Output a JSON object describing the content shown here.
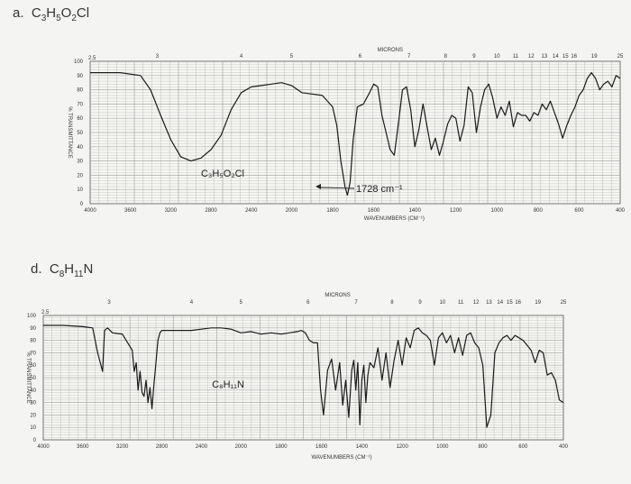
{
  "problems": [
    {
      "letter": "a.",
      "formula_parts": [
        [
          "C",
          ""
        ],
        [
          "H",
          "5"
        ],
        [
          "O",
          "2"
        ],
        [
          "Cl",
          ""
        ]
      ],
      "formula_prefix": "3"
    },
    {
      "letter": "d.",
      "formula_parts": [
        [
          "C",
          ""
        ],
        [
          "H",
          "11"
        ],
        [
          "N",
          ""
        ]
      ],
      "formula_prefix": "8"
    }
  ],
  "chart_data": [
    {
      "type": "line",
      "ylabel": "% TRANSMITTANCE",
      "xlabel": "WAVENUMBERS (CM⁻¹)",
      "top_label": "MICRONS",
      "compound_label": "C₃H₅O₂Cl",
      "annotation": "1728 cm⁻¹",
      "y_ticks": [
        "100",
        "90",
        "80",
        "70",
        "60",
        "50",
        "40",
        "30",
        "20",
        "10",
        "0"
      ],
      "y_top_extra": "2.5",
      "x_ticks": [
        "4000",
        "3600",
        "3200",
        "2800",
        "2400",
        "2000",
        "1800",
        "1600",
        "1400",
        "1200",
        "1000",
        "800",
        "600",
        "400"
      ],
      "micron_ticks": [
        "3",
        "4",
        "5",
        "6",
        "7",
        "8",
        "9",
        "10",
        "11",
        "12",
        "13",
        "14",
        "15",
        "16",
        "19",
        "25"
      ],
      "xlim": [
        4000,
        400
      ],
      "ylim": [
        0,
        100
      ],
      "x": [
        4000,
        3700,
        3500,
        3400,
        3300,
        3200,
        3100,
        3000,
        2900,
        2800,
        2700,
        2600,
        2500,
        2400,
        2300,
        2200,
        2100,
        2000,
        1950,
        1900,
        1850,
        1800,
        1780,
        1760,
        1740,
        1728,
        1715,
        1700,
        1680,
        1650,
        1620,
        1600,
        1580,
        1560,
        1540,
        1520,
        1500,
        1480,
        1460,
        1440,
        1420,
        1400,
        1380,
        1360,
        1340,
        1320,
        1300,
        1280,
        1260,
        1240,
        1220,
        1200,
        1180,
        1160,
        1140,
        1120,
        1100,
        1080,
        1060,
        1040,
        1020,
        1000,
        980,
        960,
        940,
        920,
        900,
        880,
        860,
        840,
        820,
        800,
        780,
        760,
        740,
        720,
        700,
        680,
        660,
        640,
        620,
        600,
        580,
        560,
        540,
        520,
        500,
        480,
        460,
        440,
        420,
        400
      ],
      "y": [
        92,
        92,
        90,
        80,
        62,
        45,
        33,
        30,
        32,
        38,
        48,
        66,
        78,
        82,
        83,
        84,
        85,
        83,
        78,
        77,
        76,
        68,
        55,
        30,
        12,
        6,
        15,
        45,
        68,
        70,
        78,
        84,
        82,
        62,
        50,
        38,
        34,
        56,
        80,
        82,
        66,
        40,
        52,
        70,
        54,
        38,
        46,
        34,
        44,
        56,
        62,
        60,
        44,
        55,
        82,
        78,
        50,
        68,
        80,
        84,
        74,
        60,
        68,
        62,
        72,
        54,
        64,
        62,
        62,
        58,
        64,
        62,
        70,
        66,
        72,
        64,
        56,
        46,
        55,
        62,
        68,
        76,
        80,
        88,
        92,
        88,
        80,
        84,
        86,
        82,
        90,
        88
      ]
    },
    {
      "type": "line",
      "ylabel": "% TRANSMITTANCE",
      "xlabel": "WAVENUMBERS (CM⁻¹)",
      "top_label": "MICRONS",
      "compound_label": "C₈H₁₁N",
      "y_ticks": [
        "100",
        "90",
        "80",
        "70",
        "60",
        "50",
        "40",
        "30",
        "20",
        "10",
        "0"
      ],
      "y_top_extra": "2.5",
      "x_ticks": [
        "4000",
        "3600",
        "3200",
        "2800",
        "2400",
        "2000",
        "1800",
        "1600",
        "1400",
        "1200",
        "1000",
        "800",
        "600",
        "400"
      ],
      "micron_ticks": [
        "3",
        "4",
        "5",
        "6",
        "7",
        "8",
        "9",
        "10",
        "11",
        "12",
        "13",
        "14",
        "15",
        "16",
        "19",
        "25"
      ],
      "xlim": [
        4000,
        400
      ],
      "ylim": [
        0,
        100
      ],
      "x": [
        4000,
        3800,
        3600,
        3500,
        3450,
        3400,
        3380,
        3350,
        3300,
        3200,
        3100,
        3080,
        3060,
        3040,
        3020,
        3000,
        2980,
        2960,
        2940,
        2920,
        2900,
        2880,
        2860,
        2840,
        2820,
        2800,
        2700,
        2600,
        2500,
        2400,
        2300,
        2200,
        2100,
        2000,
        1950,
        1900,
        1850,
        1800,
        1760,
        1720,
        1700,
        1680,
        1660,
        1640,
        1620,
        1605,
        1590,
        1570,
        1550,
        1530,
        1510,
        1495,
        1480,
        1465,
        1450,
        1440,
        1430,
        1420,
        1410,
        1400,
        1390,
        1380,
        1370,
        1360,
        1340,
        1320,
        1300,
        1280,
        1260,
        1240,
        1220,
        1200,
        1180,
        1160,
        1140,
        1120,
        1100,
        1080,
        1060,
        1040,
        1020,
        1000,
        980,
        960,
        940,
        920,
        900,
        880,
        860,
        840,
        820,
        800,
        780,
        760,
        740,
        720,
        700,
        680,
        660,
        640,
        620,
        600,
        580,
        560,
        540,
        520,
        500,
        480,
        460,
        440,
        420,
        400
      ],
      "y": [
        92,
        92,
        91,
        90,
        70,
        55,
        88,
        90,
        86,
        85,
        72,
        55,
        62,
        40,
        55,
        38,
        35,
        48,
        30,
        42,
        25,
        45,
        62,
        80,
        86,
        88,
        88,
        88,
        88,
        89,
        90,
        90,
        89,
        86,
        87,
        85,
        86,
        85,
        86,
        87,
        88,
        86,
        80,
        78,
        78,
        40,
        20,
        56,
        65,
        40,
        62,
        28,
        48,
        18,
        56,
        64,
        40,
        62,
        12,
        48,
        60,
        30,
        52,
        62,
        58,
        74,
        48,
        70,
        42,
        64,
        80,
        60,
        82,
        74,
        88,
        90,
        86,
        84,
        80,
        60,
        82,
        86,
        78,
        84,
        70,
        82,
        68,
        84,
        86,
        78,
        74,
        60,
        10,
        20,
        70,
        78,
        82,
        84,
        80,
        84,
        82,
        80,
        76,
        72,
        62,
        72,
        70,
        52,
        54,
        48,
        32,
        30
      ]
    }
  ]
}
